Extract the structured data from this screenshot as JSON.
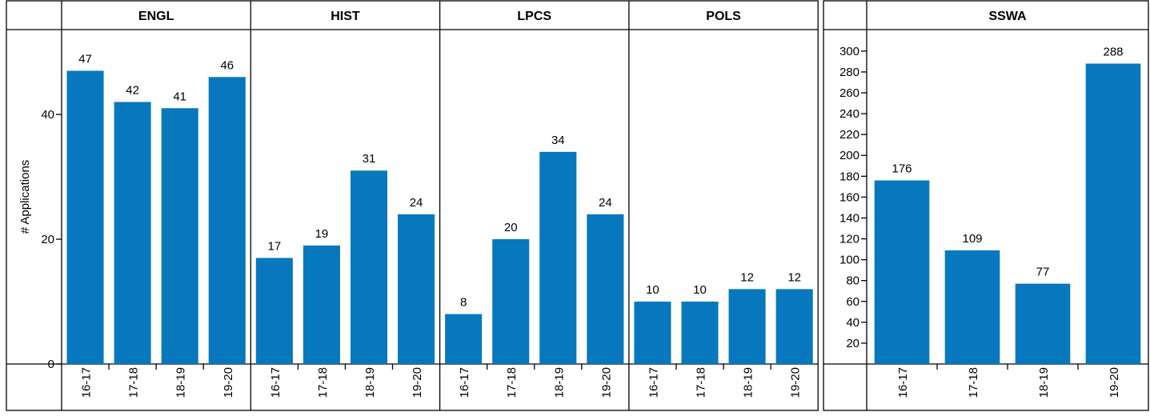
{
  "chart_data": [
    {
      "type": "bar",
      "ylabel": "# Applications",
      "categories": [
        "16-17",
        "17-18",
        "18-19",
        "19-20"
      ],
      "ylim": [
        0,
        53.6
      ],
      "yticks": [
        0,
        20,
        40
      ],
      "color": "#0778bd",
      "facets": [
        {
          "title": "ENGL",
          "values": [
            47,
            42,
            41,
            46
          ]
        },
        {
          "title": "HIST",
          "values": [
            17,
            19,
            31,
            24
          ]
        },
        {
          "title": "LPCS",
          "values": [
            8,
            20,
            34,
            24
          ]
        },
        {
          "title": "POLS",
          "values": [
            10,
            10,
            12,
            12
          ]
        }
      ]
    },
    {
      "type": "bar",
      "categories": [
        "16-17",
        "17-18",
        "18-19",
        "19-20"
      ],
      "ylim": [
        0,
        320.6
      ],
      "yticks": [
        20,
        40,
        60,
        80,
        100,
        120,
        140,
        160,
        180,
        200,
        220,
        240,
        260,
        280,
        300
      ],
      "color": "#0778bd",
      "facets": [
        {
          "title": "SSWA",
          "values": [
            176,
            109,
            77,
            288
          ]
        }
      ]
    }
  ]
}
